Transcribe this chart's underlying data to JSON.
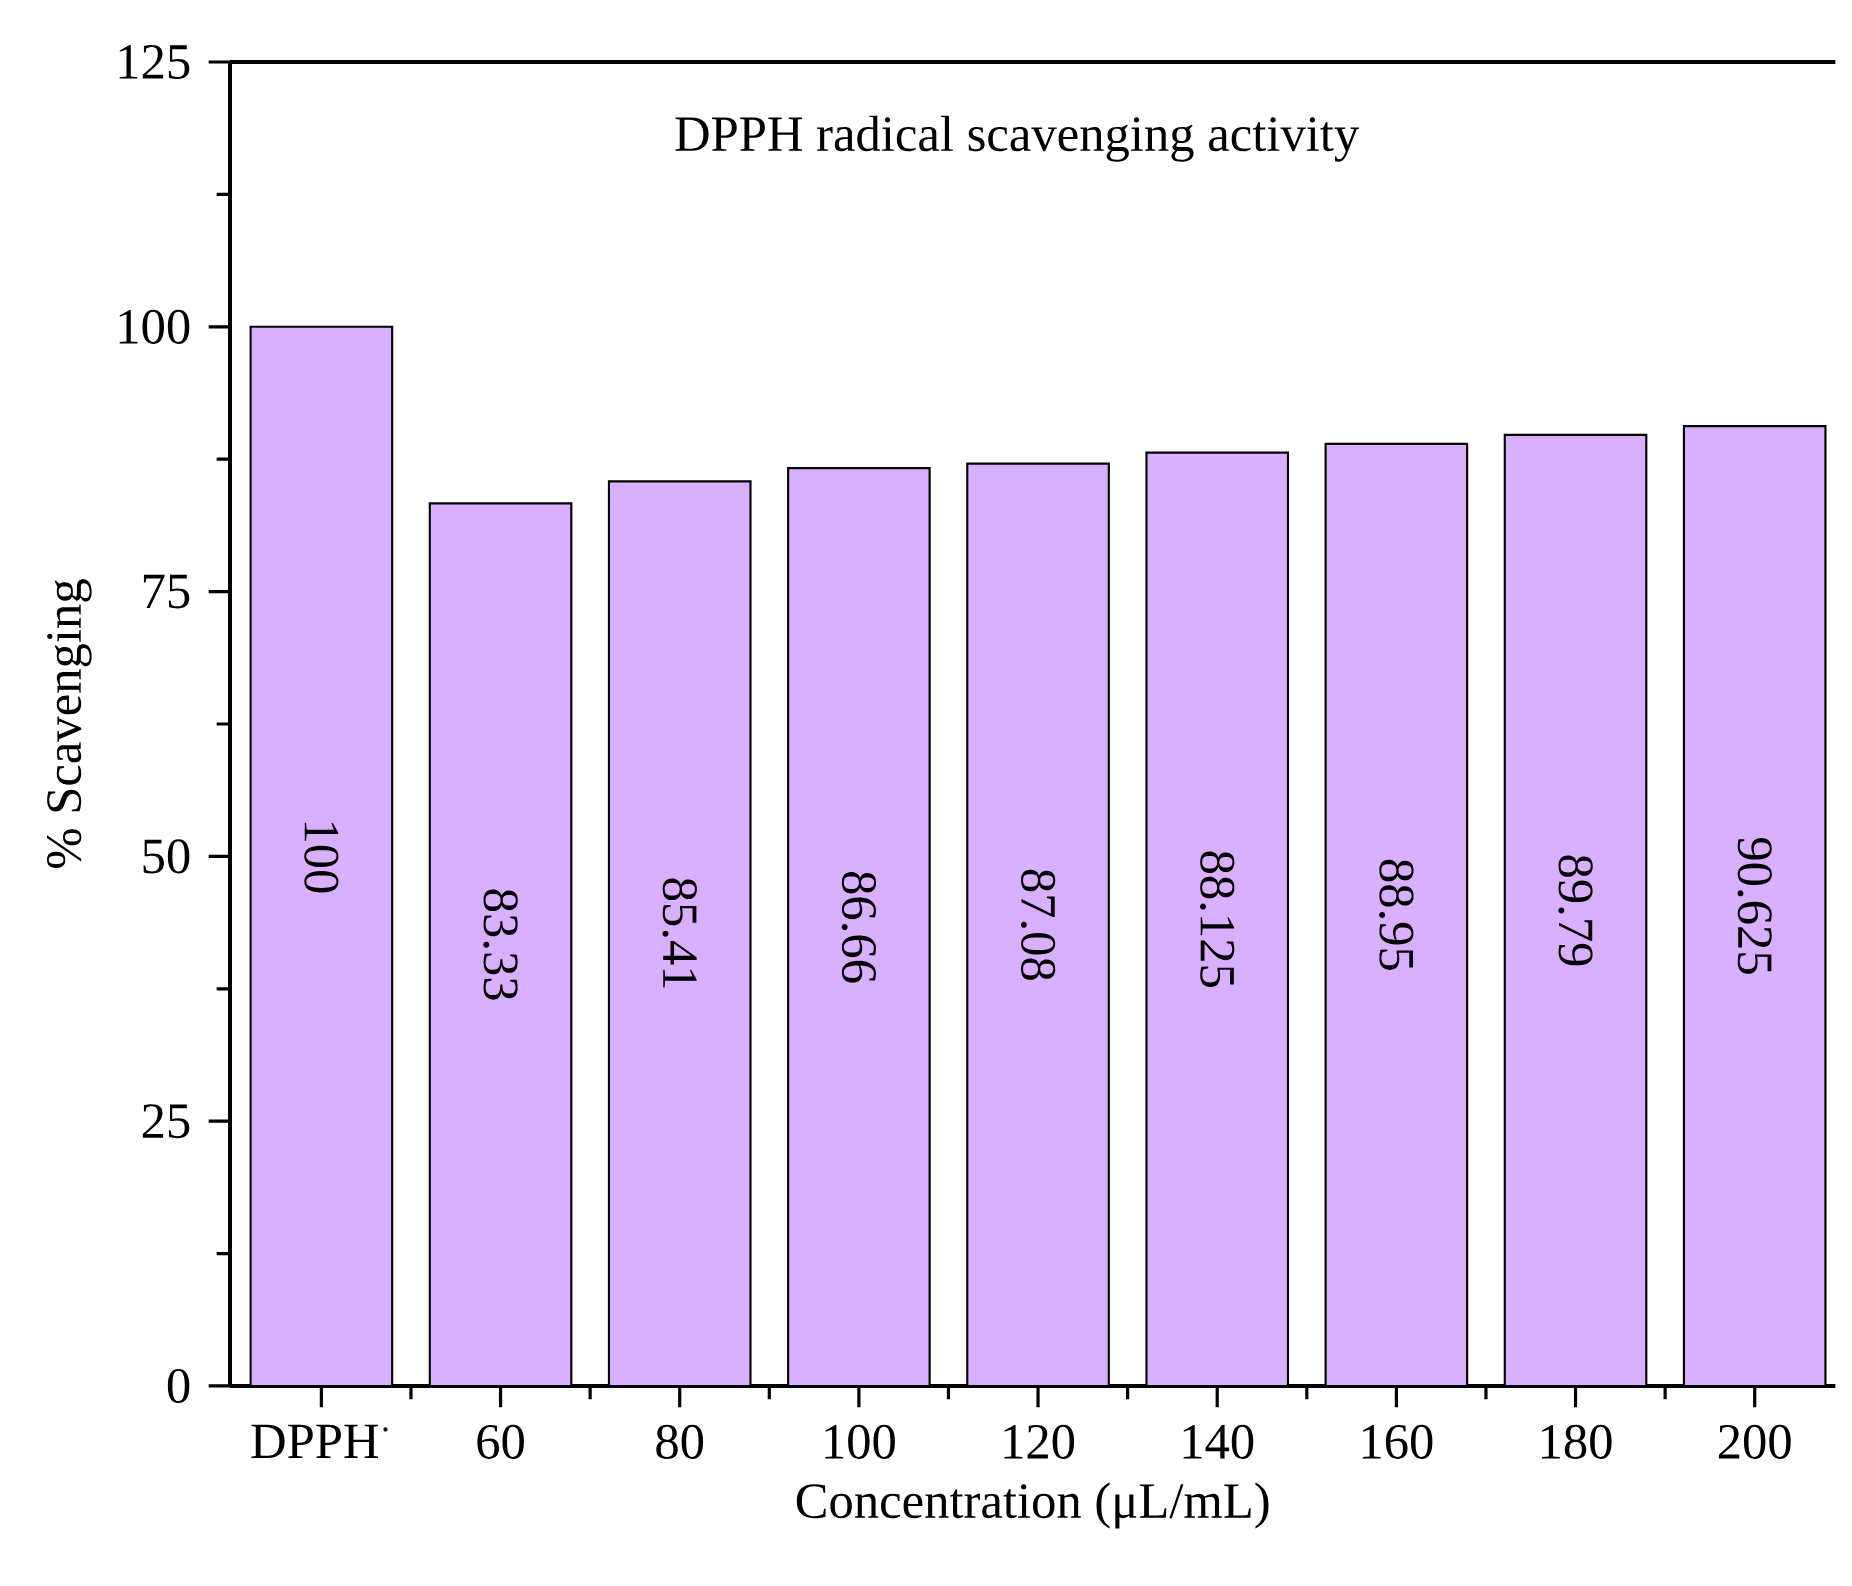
{
  "chart_data": {
    "type": "bar",
    "title": "DPPH radical scavenging activity",
    "xlabel": "Concentration (μL/mL)",
    "ylabel": "% Scavenging",
    "categories": [
      "DPPH$^{·}$",
      "60",
      "80",
      "100",
      "120",
      "140",
      "160",
      "180",
      "200"
    ],
    "values": [
      100,
      83.33,
      85.41,
      86.66,
      87.08,
      88.125,
      88.95,
      89.79,
      90.625
    ],
    "color": "#d8b0ff",
    "ylim": [
      0,
      125
    ],
    "yticks": [
      0,
      25,
      50,
      75,
      100,
      125
    ],
    "data_labels": true
  }
}
